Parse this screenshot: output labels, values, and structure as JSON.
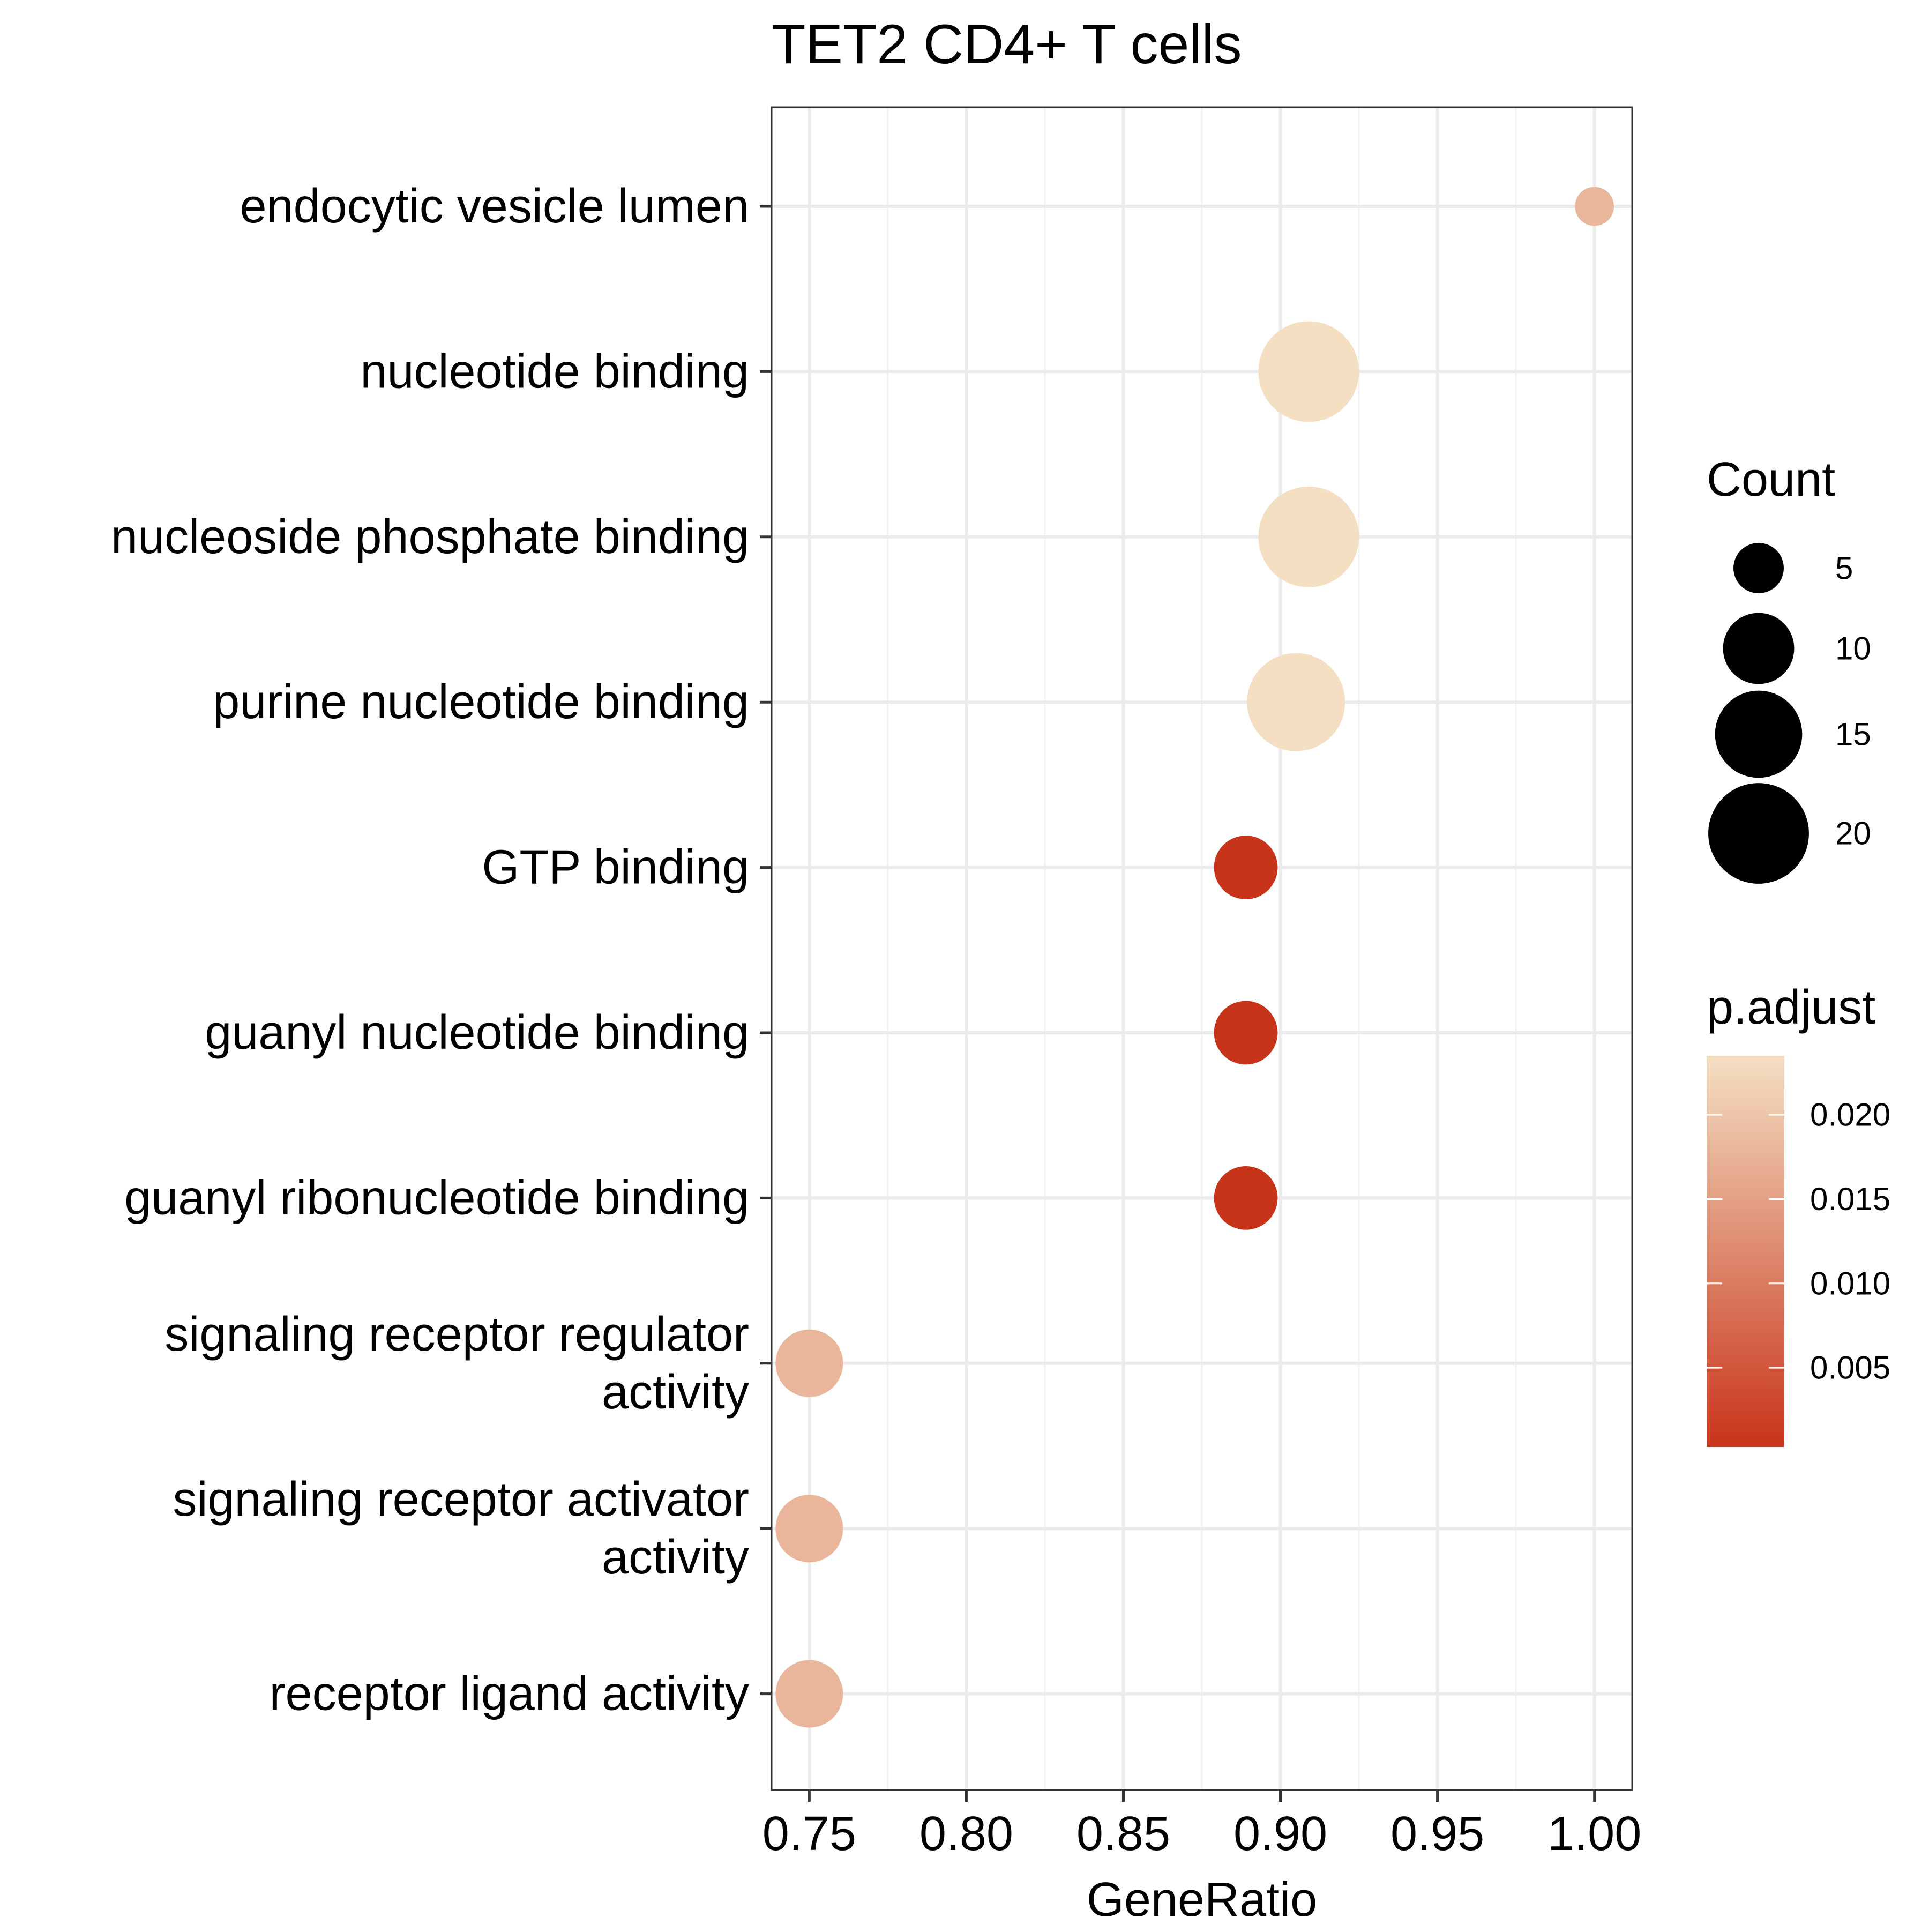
{
  "chart_data": {
    "type": "scatter",
    "title": "TET2 CD4+ T cells",
    "xlabel": "GeneRatio",
    "ylabel": "",
    "xlim": [
      0.738,
      1.012
    ],
    "x_ticks": [
      0.75,
      0.8,
      0.85,
      0.9,
      0.95,
      1.0
    ],
    "x_tick_labels": [
      "0.75",
      "0.80",
      "0.85",
      "0.90",
      "0.95",
      "1.00"
    ],
    "grid": true,
    "categories": [
      [
        "endocytic vesicle lumen"
      ],
      [
        "nucleotide binding"
      ],
      [
        "nucleoside phosphate binding"
      ],
      [
        "purine nucleotide binding"
      ],
      [
        "GTP binding"
      ],
      [
        "guanyl nucleotide binding"
      ],
      [
        "guanyl ribonucleotide binding"
      ],
      [
        "signaling receptor regulator",
        "activity"
      ],
      [
        "signaling receptor activator",
        "activity"
      ],
      [
        "receptor ligand activity"
      ]
    ],
    "points": [
      {
        "x": 1.0,
        "count": 3,
        "p_adjust": 0.018
      },
      {
        "x": 0.909,
        "count": 20,
        "p_adjust": 0.0235
      },
      {
        "x": 0.909,
        "count": 20,
        "p_adjust": 0.0235
      },
      {
        "x": 0.905,
        "count": 19,
        "p_adjust": 0.0235
      },
      {
        "x": 0.889,
        "count": 8,
        "p_adjust": 0.0003
      },
      {
        "x": 0.889,
        "count": 8,
        "p_adjust": 0.0003
      },
      {
        "x": 0.889,
        "count": 8,
        "p_adjust": 0.0003
      },
      {
        "x": 0.75,
        "count": 9,
        "p_adjust": 0.018
      },
      {
        "x": 0.75,
        "count": 9,
        "p_adjust": 0.018
      },
      {
        "x": 0.75,
        "count": 9,
        "p_adjust": 0.018
      }
    ],
    "size_legend": {
      "title": "Count",
      "values": [
        5,
        10,
        15,
        20
      ],
      "labels": [
        "5",
        "10",
        "15",
        "20"
      ]
    },
    "color_legend": {
      "title": "p.adjust",
      "min": 0.0003,
      "max": 0.0235,
      "ticks": [
        0.005,
        0.01,
        0.015,
        0.02
      ],
      "tick_labels": [
        "0.005",
        "0.010",
        "0.015",
        "0.020"
      ],
      "low_color": "#C8341A",
      "high_color": "#F4DFC3"
    },
    "colors": {
      "panel_border": "#333333",
      "grid_major": "#EBEBEB",
      "grid_minor": "#F2F2F2",
      "point_neutral": "#000000"
    }
  }
}
